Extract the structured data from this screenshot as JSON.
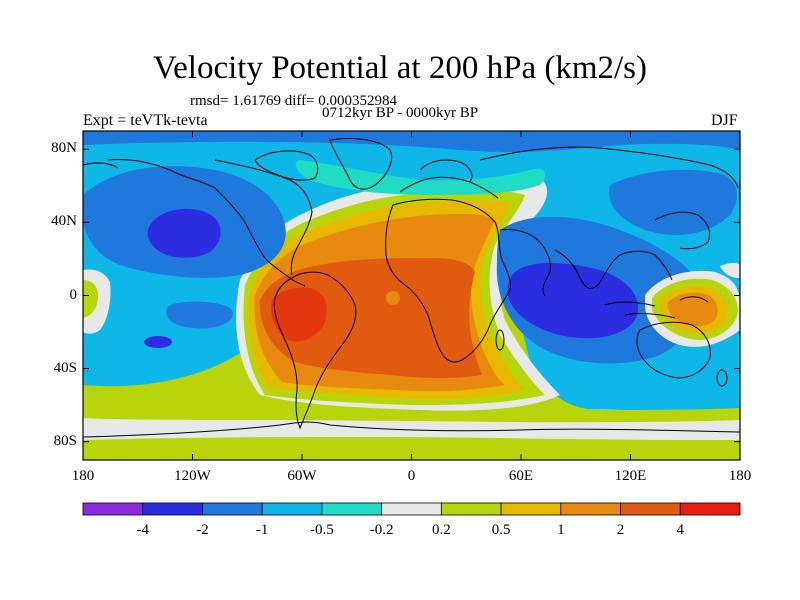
{
  "title": "Velocity Potential at 200 hPa (km2/s)",
  "stats": "rmsd= 1.61769 diff= 0.000352984",
  "period": "0712kyr BP - 0000kyr BP",
  "experiment": "Expt = teVTk-tevta",
  "season": "DJF",
  "map": {
    "projection": "cylindrical-equidistant",
    "lon_range": [
      -180,
      180
    ],
    "lat_range": [
      -90,
      90
    ],
    "lat_ticks": [
      {
        "value": 80,
        "label": "80N"
      },
      {
        "value": 40,
        "label": "40N"
      },
      {
        "value": 0,
        "label": "0"
      },
      {
        "value": -40,
        "label": "40S"
      },
      {
        "value": -80,
        "label": "80S"
      }
    ],
    "lon_ticks": [
      {
        "value": -180,
        "label": "180"
      },
      {
        "value": -120,
        "label": "120W"
      },
      {
        "value": -60,
        "label": "60W"
      },
      {
        "value": 0,
        "label": "0"
      },
      {
        "value": 60,
        "label": "60E"
      },
      {
        "value": 120,
        "label": "120E"
      },
      {
        "value": 180,
        "label": "180"
      }
    ]
  },
  "colorbar": {
    "colors": [
      "#8a2be2",
      "#2c2ce0",
      "#1f78dc",
      "#0fb7e8",
      "#20dcc4",
      "#e8e8e8",
      "#b8d40a",
      "#e6b800",
      "#e88a10",
      "#e05a10",
      "#e81c10"
    ],
    "labels": [
      "-4",
      "-2",
      "-1",
      "-0.5",
      "-0.2",
      "0.2",
      "0.5",
      "1",
      "2",
      "4"
    ]
  }
}
